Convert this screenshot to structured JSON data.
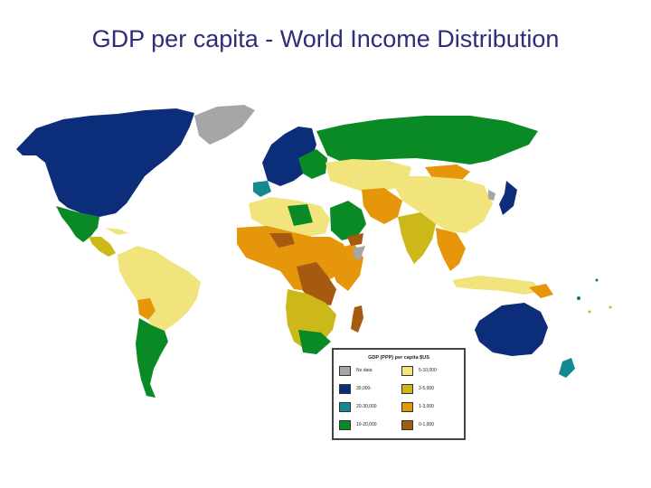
{
  "slide": {
    "title": "GDP per capita - World Income Distribution"
  },
  "legend": {
    "title": "GDP (PPP) per capita    $US",
    "items": [
      {
        "label": "No data",
        "color": "#a6a6a6"
      },
      {
        "label": "5-10,000",
        "color": "#f2e47c"
      },
      {
        "label": "30,000-",
        "color": "#0c2d7a"
      },
      {
        "label": "3-5,000",
        "color": "#cdb81a"
      },
      {
        "label": "20-30,000",
        "color": "#138a8f"
      },
      {
        "label": "1-3,000",
        "color": "#e6960a"
      },
      {
        "label": "10-20,000",
        "color": "#0a8a25"
      },
      {
        "label": "0-1,000",
        "color": "#a65a0f"
      }
    ]
  },
  "colors": {
    "no_data": "#a6a6a6",
    "over_30000": "#0c2d7a",
    "20_30000": "#138a8f",
    "10_20000": "#0a8a25",
    "5_10000": "#f2e47c",
    "3_5000": "#cdb81a",
    "1_3000": "#e6960a",
    "0_1000": "#a65a0f"
  }
}
